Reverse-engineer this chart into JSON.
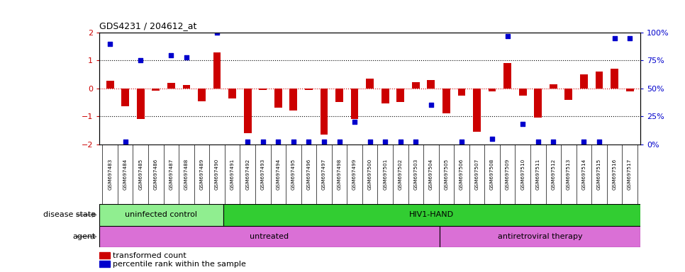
{
  "title": "GDS4231 / 204612_at",
  "samples": [
    "GSM697483",
    "GSM697484",
    "GSM697485",
    "GSM697486",
    "GSM697487",
    "GSM697488",
    "GSM697489",
    "GSM697490",
    "GSM697491",
    "GSM697492",
    "GSM697493",
    "GSM697494",
    "GSM697495",
    "GSM697496",
    "GSM697497",
    "GSM697498",
    "GSM697499",
    "GSM697500",
    "GSM697501",
    "GSM697502",
    "GSM697503",
    "GSM697504",
    "GSM697505",
    "GSM697506",
    "GSM697507",
    "GSM697508",
    "GSM697509",
    "GSM697510",
    "GSM697511",
    "GSM697512",
    "GSM697513",
    "GSM697514",
    "GSM697515",
    "GSM697516",
    "GSM697517"
  ],
  "bar_values": [
    0.28,
    -0.65,
    -1.1,
    -0.08,
    0.2,
    0.12,
    -0.45,
    1.3,
    -0.35,
    -1.6,
    -0.05,
    -0.7,
    -0.8,
    -0.05,
    -1.65,
    -0.5,
    -1.1,
    0.35,
    -0.55,
    -0.5,
    0.22,
    0.3,
    -0.9,
    -0.25,
    -1.55,
    -0.1,
    0.9,
    -0.25,
    -1.05,
    0.15,
    -0.4,
    0.5,
    0.6,
    0.7,
    -0.1
  ],
  "dot_values_pct": [
    90,
    2,
    75,
    null,
    80,
    78,
    null,
    100,
    null,
    2,
    2,
    2,
    2,
    2,
    2,
    2,
    20,
    2,
    2,
    2,
    2,
    35,
    null,
    2,
    null,
    5,
    97,
    18,
    2,
    2,
    null,
    2,
    2,
    95,
    95
  ],
  "bar_color": "#cc0000",
  "dot_color": "#0000cc",
  "ylim_left": [
    -2,
    2
  ],
  "ylim_right": [
    0,
    100
  ],
  "yticks_left": [
    -2,
    -1,
    0,
    1,
    2
  ],
  "yticks_right": [
    0,
    25,
    50,
    75,
    100
  ],
  "disease_state_groups": [
    {
      "label": "uninfected control",
      "start": 0,
      "end": 8,
      "color": "#90ee90"
    },
    {
      "label": "HIV1-HAND",
      "start": 8,
      "end": 35,
      "color": "#32cd32"
    }
  ],
  "agent_split": 22,
  "agent_untreated_label": "untreated",
  "agent_therapy_label": "antiretroviral therapy",
  "agent_color": "#da70d6",
  "disease_state_label": "disease state",
  "agent_label": "agent",
  "legend_bar_label": "transformed count",
  "legend_dot_label": "percentile rank within the sample",
  "xtick_bg_color": "#c8c8c8"
}
